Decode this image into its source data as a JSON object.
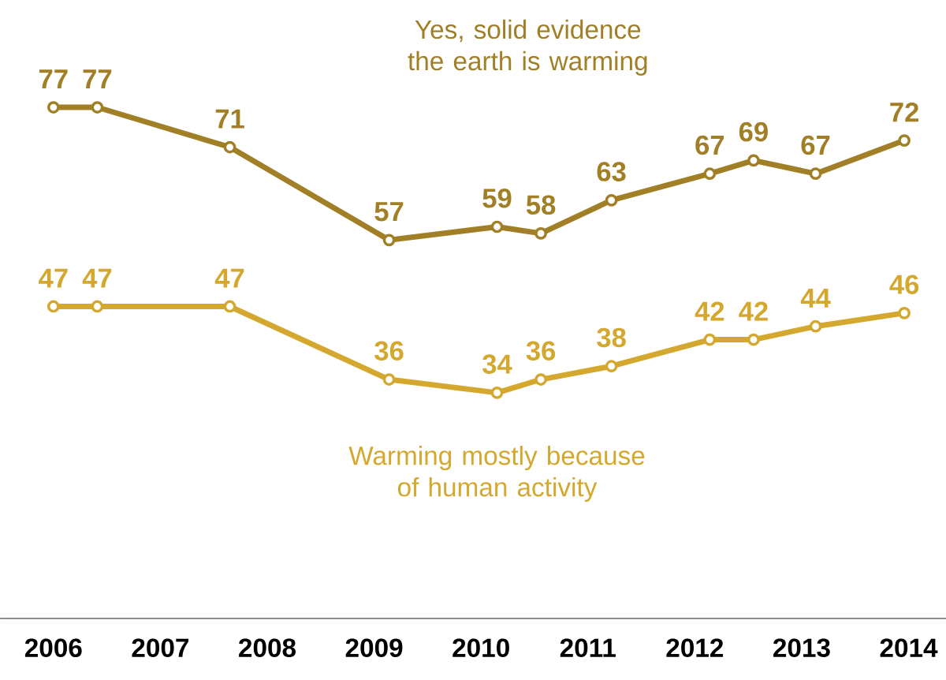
{
  "chart_data": {
    "type": "line",
    "x": [
      2006.0,
      2006.41,
      2007.65,
      2009.14,
      2010.15,
      2010.56,
      2011.22,
      2012.14,
      2012.55,
      2013.13,
      2013.96
    ],
    "series": [
      {
        "name": "Yes, solid evidence the earth is warming",
        "color": "#a07f26",
        "values": [
          77,
          77,
          71,
          57,
          59,
          58,
          63,
          67,
          69,
          67,
          72
        ]
      },
      {
        "name": "Warming mostly because of human activity",
        "color": "#d4a82f",
        "values": [
          47,
          47,
          47,
          36,
          34,
          36,
          38,
          42,
          42,
          44,
          46
        ]
      }
    ],
    "xlim": [
      2005.5,
      2014.35
    ],
    "xticks": [
      2006,
      2007,
      2008,
      2009,
      2010,
      2011,
      2012,
      2013,
      2014
    ],
    "tick_labels": "x",
    "data_labels": true,
    "marker": "circle",
    "line_style": "solid"
  }
}
